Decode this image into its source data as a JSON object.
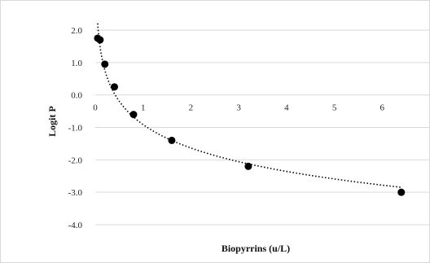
{
  "chart_data": {
    "type": "scatter",
    "title": "",
    "xlabel": "Biopyrrins (u/L)",
    "ylabel": "Logit P",
    "xlim": [
      0,
      7
    ],
    "ylim": [
      -4,
      2
    ],
    "x_ticks": [
      0,
      1,
      2,
      3,
      4,
      5,
      6
    ],
    "y_ticks": [
      2,
      1,
      0,
      -1,
      -2,
      -3,
      -4
    ],
    "x_tick_labels": [
      "0",
      "1",
      "2",
      "3",
      "4",
      "5",
      "6"
    ],
    "y_tick_labels": [
      "2.0",
      "1.0",
      "0.0",
      "-1.0",
      "-2.0",
      "-3.0",
      "-4.0"
    ],
    "grid": {
      "horizontal": true,
      "vertical": false
    },
    "legend": "none",
    "point_color": "#000000",
    "trendline": {
      "type": "logarithmic",
      "style": "dotted",
      "color": "#000000"
    },
    "series": [
      {
        "x": [
          0.05,
          0.1,
          0.2,
          0.4,
          0.8,
          1.6,
          3.2,
          6.4
        ],
        "y": [
          1.75,
          1.7,
          0.95,
          0.25,
          -0.6,
          -1.4,
          -2.2,
          -3.0
        ]
      }
    ]
  }
}
